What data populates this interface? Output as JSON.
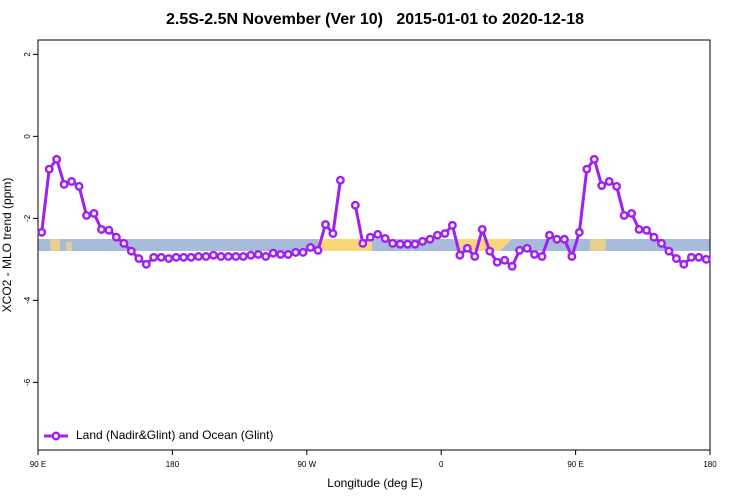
{
  "chart_data": {
    "type": "line",
    "title": "2.5S-2.5N November (Ver 10)   2015-01-01 to 2020-12-18",
    "xlabel": "Longitude (deg E)",
    "ylabel": "XCO2 - MLO trend (ppm)",
    "x": [
      92.5,
      97.5,
      102.5,
      107.5,
      112.5,
      117.5,
      122.5,
      127.5,
      132.5,
      137.5,
      142.5,
      147.5,
      152.5,
      157.5,
      162.5,
      167.5,
      172.5,
      177.5,
      182.5,
      187.5,
      192.5,
      197.5,
      202.5,
      207.5,
      212.5,
      217.5,
      222.5,
      227.5,
      232.5,
      237.5,
      242.5,
      247.5,
      252.5,
      257.5,
      262.5,
      267.5,
      272.5,
      277.5,
      282.5,
      287.5,
      292.5,
      297.5,
      302.5,
      307.5,
      312.5,
      317.5,
      322.5,
      327.5,
      332.5,
      337.5,
      342.5,
      347.5,
      352.5,
      357.5,
      362.5,
      367.5,
      372.5,
      377.5,
      382.5,
      387.5,
      392.5,
      397.5,
      402.5,
      407.5,
      412.5,
      417.5,
      422.5,
      427.5,
      432.5,
      437.5,
      442.5,
      447.5,
      452.5,
      457.5,
      462.5,
      467.5,
      472.5,
      477.5,
      482.5,
      487.5,
      492.5,
      497.5,
      502.5,
      507.5,
      512.5,
      517.5,
      522.5,
      527.5,
      532.5,
      537.5
    ],
    "series": [
      {
        "name": "Land (Nadir&Glint) and Ocean (Glint)",
        "color": "#a020f0",
        "values": [
          -2.34,
          -0.8,
          -0.56,
          -1.17,
          -1.1,
          -1.22,
          -1.93,
          -1.88,
          -2.27,
          -2.29,
          -2.46,
          -2.61,
          -2.8,
          -2.98,
          -3.12,
          -2.95,
          -2.95,
          -2.98,
          -2.95,
          -2.95,
          -2.95,
          -2.93,
          -2.93,
          -2.9,
          -2.93,
          -2.93,
          -2.93,
          -2.93,
          -2.9,
          -2.88,
          -2.93,
          -2.85,
          -2.88,
          -2.88,
          -2.83,
          -2.83,
          -2.71,
          -2.78,
          -2.15,
          -2.37,
          -1.07,
          null,
          -1.68,
          -2.61,
          -2.46,
          -2.39,
          -2.49,
          -2.61,
          -2.63,
          -2.63,
          -2.63,
          -2.56,
          -2.51,
          -2.41,
          -2.37,
          -2.17,
          -2.9,
          -2.73,
          -2.93,
          -2.27,
          -2.8,
          -3.07,
          -3.02,
          -3.17,
          -2.78,
          -2.73,
          -2.88,
          -2.93,
          -2.41,
          -2.51,
          -2.51,
          -2.93,
          -2.34,
          -0.8,
          -0.56,
          -1.2,
          -1.1,
          -1.22,
          -1.93,
          -1.88,
          -2.27,
          -2.29,
          -2.46,
          -2.61,
          -2.8,
          -2.98,
          -3.12,
          -2.95,
          -2.95,
          -3.0
        ]
      }
    ],
    "xlim": [
      90,
      540
    ],
    "xticks": [
      {
        "value": 90,
        "label": "90 E"
      },
      180,
      {
        "value": 270,
        "label": "90 W"
      },
      {
        "value": 360,
        "label": "0"
      },
      {
        "value": 450,
        "label": "90 E"
      },
      {
        "value": 540,
        "label": "180"
      }
    ],
    "ylim": [
      -7.65,
      2.35
    ],
    "yticks": [
      2,
      0,
      -2,
      -4,
      -6
    ],
    "legend": "bottom left"
  }
}
